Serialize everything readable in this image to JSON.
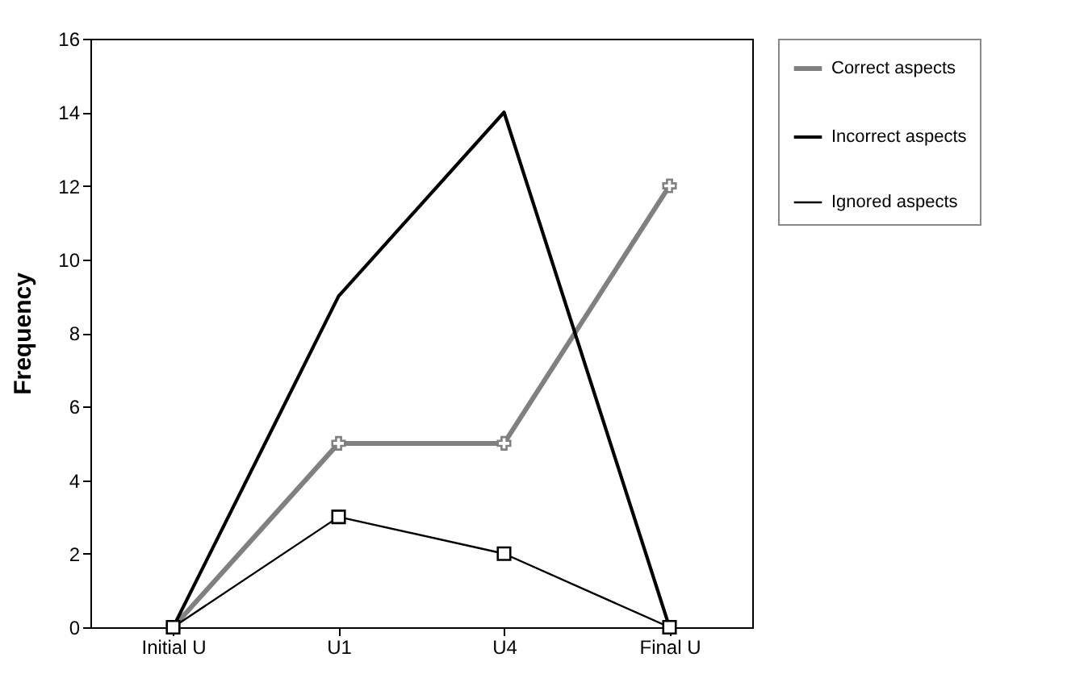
{
  "chart_data": {
    "type": "line",
    "ylabel": "Frequency",
    "categories": [
      "Initial U",
      "U1",
      "U4",
      "Final U"
    ],
    "series": [
      {
        "name": "Correct aspects",
        "color": "#808080",
        "marker": "cross",
        "values": [
          0,
          5,
          5,
          12
        ]
      },
      {
        "name": "Incorrect aspects",
        "color": "#000000",
        "values": [
          0,
          9,
          14,
          0
        ]
      },
      {
        "name": "Ignored aspects",
        "color": "#000000",
        "marker": "square",
        "values": [
          0,
          3,
          2,
          0
        ]
      }
    ],
    "ylim": [
      0,
      16
    ],
    "yticks": [
      0,
      2,
      4,
      6,
      8,
      10,
      12,
      14,
      16
    ],
    "grid": false,
    "legend": "right",
    "line_style": "solid"
  }
}
